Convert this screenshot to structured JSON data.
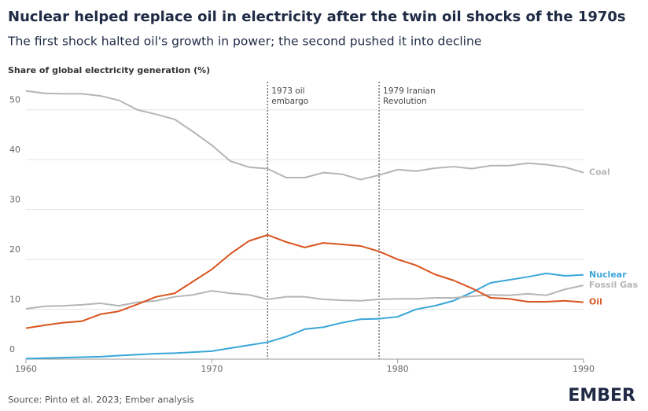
{
  "chart_data": {
    "type": "line",
    "title": "Nuclear helped replace oil in electricity after the twin oil shocks of the 1970s",
    "subtitle": "The first shock halted oil's growth in power; the second pushed it into decline",
    "y_label": "Share of global electricity generation (%)",
    "source": "Source: Pinto et al. 2023; Ember analysis",
    "logo": "EMBER",
    "x": [
      1960,
      1961,
      1962,
      1963,
      1964,
      1965,
      1966,
      1967,
      1968,
      1969,
      1970,
      1971,
      1972,
      1973,
      1974,
      1975,
      1976,
      1977,
      1978,
      1979,
      1980,
      1981,
      1982,
      1983,
      1984,
      1985,
      1986,
      1987,
      1988,
      1989,
      1990
    ],
    "series": [
      {
        "name": "Coal",
        "color": "#b5b5b5",
        "values": [
          53.8,
          53.3,
          53.2,
          53.2,
          52.8,
          51.9,
          50.0,
          49.1,
          48.1,
          45.6,
          42.9,
          39.7,
          38.5,
          38.2,
          36.4,
          36.4,
          37.4,
          37.1,
          36.0,
          36.9,
          38.0,
          37.7,
          38.3,
          38.6,
          38.2,
          38.8,
          38.8,
          39.3,
          39.0,
          38.5,
          37.4
        ]
      },
      {
        "name": "Nuclear",
        "color": "#3aa6d8",
        "values": [
          0.1,
          0.2,
          0.3,
          0.4,
          0.5,
          0.7,
          0.9,
          1.1,
          1.2,
          1.4,
          1.6,
          2.2,
          2.8,
          3.4,
          4.5,
          6.0,
          6.4,
          7.3,
          8.0,
          8.1,
          8.5,
          10.0,
          10.7,
          11.7,
          13.4,
          15.3,
          15.9,
          16.5,
          17.2,
          16.7,
          16.9
        ]
      },
      {
        "name": "Fossil Gas",
        "color": "#b5b5b5",
        "values": [
          10.1,
          10.6,
          10.7,
          10.9,
          11.2,
          10.7,
          11.4,
          11.7,
          12.5,
          12.9,
          13.7,
          13.2,
          12.9,
          12.0,
          12.5,
          12.5,
          12.0,
          11.8,
          11.7,
          12.0,
          12.1,
          12.1,
          12.3,
          12.3,
          12.6,
          12.9,
          12.8,
          13.1,
          12.8,
          14.0,
          14.8
        ]
      },
      {
        "name": "Oil",
        "color": "#d9541e",
        "values": [
          6.2,
          6.8,
          7.3,
          7.6,
          9.0,
          9.6,
          11.0,
          12.5,
          13.2,
          15.6,
          18.0,
          21.1,
          23.7,
          24.9,
          23.5,
          22.4,
          23.3,
          23.0,
          22.7,
          21.6,
          20.0,
          18.8,
          17.0,
          15.8,
          14.2,
          12.3,
          12.1,
          11.5,
          11.5,
          11.7,
          11.4
        ]
      }
    ],
    "annotations": [
      {
        "x": 1973,
        "text": [
          "1973 oil",
          "embargo"
        ]
      },
      {
        "x": 1979,
        "text": [
          "1979 Iranian",
          "Revolution"
        ]
      }
    ],
    "xlim": [
      1960,
      1990
    ],
    "xticks": [
      1960,
      1970,
      1980,
      1990
    ],
    "ylim": [
      0,
      55
    ],
    "yticks": [
      0,
      10,
      20,
      30,
      40,
      50
    ],
    "grid": true
  }
}
